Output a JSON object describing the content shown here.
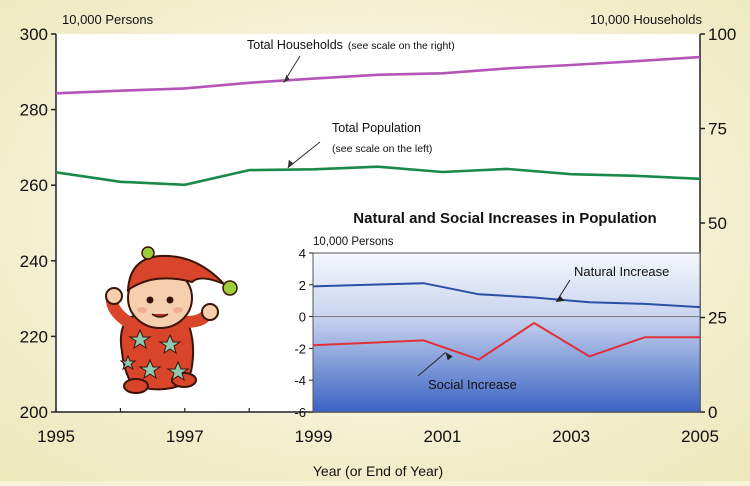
{
  "chart_data": [
    {
      "type": "line",
      "x": [
        1995,
        1996,
        1997,
        1998,
        1999,
        2000,
        2001,
        2002,
        2003,
        2004,
        2005
      ],
      "x_ticks": [
        "1995",
        "1997",
        "1999",
        "2001",
        "2003",
        "2005"
      ],
      "xlabel": "Year (or End of Year)",
      "y_left": {
        "unit": "10,000 Persons",
        "lim": [
          200,
          300
        ],
        "ticks": [
          "200",
          "220",
          "240",
          "260",
          "280",
          "300"
        ]
      },
      "y_right": {
        "unit": "10,000 Households",
        "lim": [
          0,
          100
        ],
        "ticks": [
          "0",
          "25",
          "50",
          "75",
          "100"
        ]
      },
      "series": [
        {
          "name": "Total Households",
          "label": "Total Households",
          "label_note": "(see scale on the right)",
          "axis": "right",
          "color": "#b455b8",
          "values": [
            84.3,
            85.0,
            85.6,
            87.1,
            88.2,
            89.2,
            89.6,
            90.9,
            91.8,
            92.8,
            93.9
          ]
        },
        {
          "name": "Total Population",
          "label": "Total Population",
          "label_note": "(see scale on the left)",
          "axis": "left",
          "color": "#1a8a4a",
          "values": [
            263.4,
            260.9,
            260.1,
            264.0,
            264.2,
            264.9,
            263.5,
            264.3,
            262.9,
            262.5,
            261.7
          ]
        }
      ]
    },
    {
      "type": "line",
      "title": "Natural and Social Increases in Population",
      "x": [
        1998,
        2000,
        2001,
        2002,
        2003,
        2004,
        2005
      ],
      "yunit": "10,000 Persons",
      "ylim": [
        -6,
        4
      ],
      "y_ticks": [
        "4",
        "2",
        "0",
        "-2",
        "-4",
        "-6"
      ],
      "series": [
        {
          "name": "Natural Increase",
          "color": "#2a4fa6",
          "values": [
            1.9,
            2.1,
            1.4,
            1.2,
            0.9,
            0.8,
            0.6
          ]
        },
        {
          "name": "Social Increase",
          "color": "#e0303a",
          "values": [
            -1.8,
            -1.5,
            -2.7,
            -0.4,
            -2.5,
            -1.3,
            -1.3
          ]
        }
      ]
    }
  ],
  "colors": {
    "background": "#f5f2d6",
    "plot_area": "#ffffff",
    "inset_gradient_top": "#f4f6fb",
    "inset_gradient_bottom": "#3a63c4"
  },
  "decorations": {
    "illustration": "baby-in-red-pajamas-icon"
  }
}
